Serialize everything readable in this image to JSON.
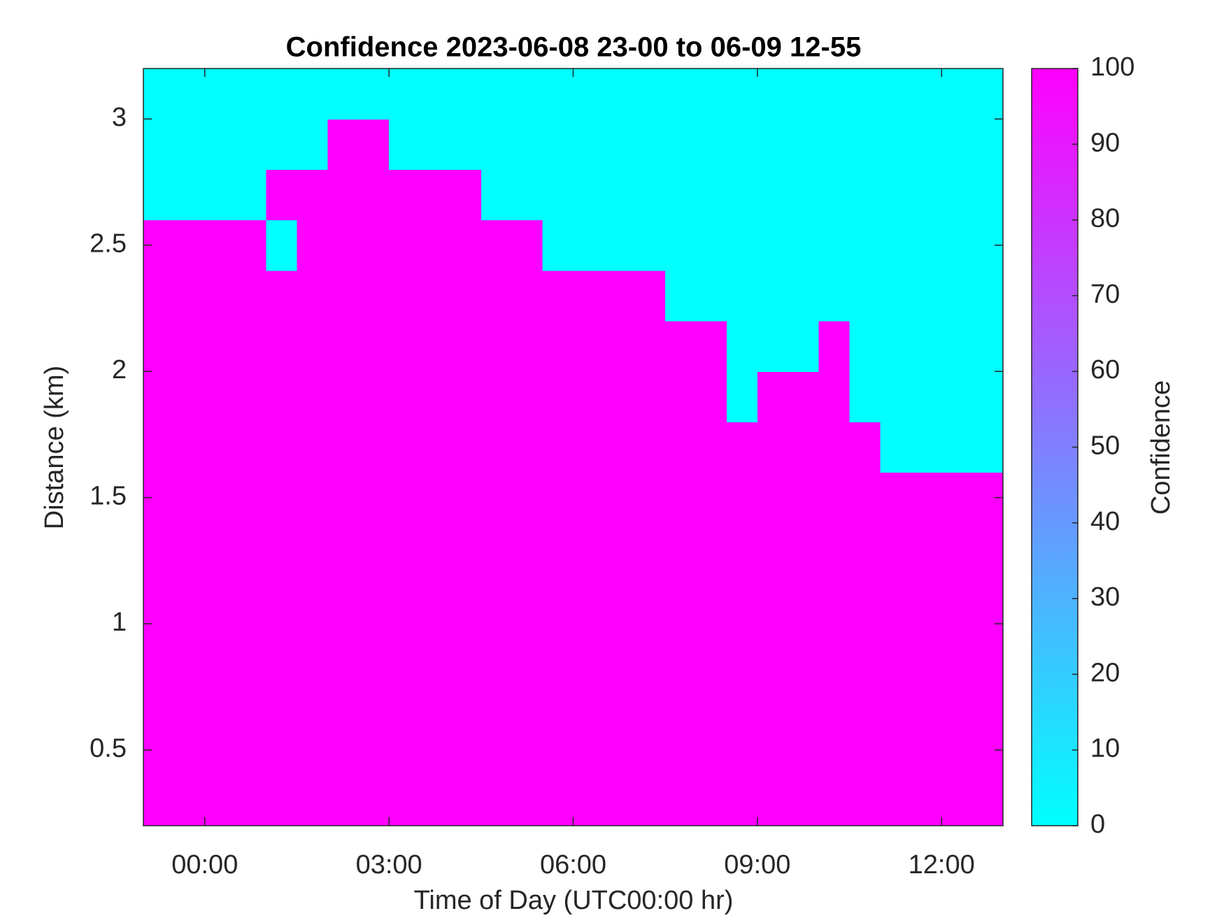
{
  "chart_data": {
    "type": "heatmap",
    "title": "Confidence 2023-06-08 23-00 to 06-09 12-55",
    "x_label": "Time of Day (UTC00:00 hr)",
    "y_label": "Distance (km)",
    "colorbar_label": "Confidence",
    "colormap": "cool",
    "xlim": [
      -1,
      13
    ],
    "ylim": [
      0.2,
      3.2
    ],
    "clim": [
      0,
      100
    ],
    "xticks": [
      {
        "value": 0,
        "label": "00:00"
      },
      {
        "value": 3,
        "label": "03:00"
      },
      {
        "value": 6,
        "label": "06:00"
      },
      {
        "value": 9,
        "label": "09:00"
      },
      {
        "value": 12,
        "label": "12:00"
      }
    ],
    "yticks": [
      0.5,
      1,
      1.5,
      2,
      2.5,
      3
    ],
    "cticks": [
      0,
      10,
      20,
      30,
      40,
      50,
      60,
      70,
      80,
      90,
      100
    ],
    "x_edges": [
      -1,
      -0.5,
      0,
      0.5,
      1,
      1.5,
      2,
      2.5,
      3,
      3.5,
      4,
      4.5,
      5,
      5.5,
      6,
      6.5,
      7,
      7.5,
      8,
      8.5,
      9,
      9.5,
      10,
      10.5,
      11,
      11.5,
      12,
      12.5,
      13
    ],
    "y_edges": [
      0.2,
      0.4,
      0.6,
      0.8,
      1.0,
      1.2,
      1.4,
      1.6,
      1.8,
      2.0,
      2.2,
      2.4,
      2.6,
      2.8,
      3.0,
      3.2
    ],
    "z": [
      [
        100,
        100,
        100,
        100,
        100,
        100,
        100,
        100,
        100,
        100,
        100,
        100,
        100,
        100,
        100,
        100,
        100,
        100,
        100,
        100,
        100,
        100,
        100,
        100,
        100,
        100,
        100,
        100
      ],
      [
        100,
        100,
        100,
        100,
        100,
        100,
        100,
        100,
        100,
        100,
        100,
        100,
        100,
        100,
        100,
        100,
        100,
        100,
        100,
        100,
        100,
        100,
        100,
        100,
        100,
        100,
        100,
        100
      ],
      [
        100,
        100,
        100,
        100,
        100,
        100,
        100,
        100,
        100,
        100,
        100,
        100,
        100,
        100,
        100,
        100,
        100,
        100,
        100,
        100,
        100,
        100,
        100,
        100,
        100,
        100,
        100,
        100
      ],
      [
        100,
        100,
        100,
        100,
        100,
        100,
        100,
        100,
        100,
        100,
        100,
        100,
        100,
        100,
        100,
        100,
        100,
        100,
        100,
        100,
        100,
        100,
        100,
        100,
        100,
        100,
        100,
        100
      ],
      [
        100,
        100,
        100,
        100,
        100,
        100,
        100,
        100,
        100,
        100,
        100,
        100,
        100,
        100,
        100,
        100,
        100,
        100,
        100,
        100,
        100,
        100,
        100,
        100,
        100,
        100,
        100,
        100
      ],
      [
        100,
        100,
        100,
        100,
        100,
        100,
        100,
        100,
        100,
        100,
        100,
        100,
        100,
        100,
        100,
        100,
        100,
        100,
        100,
        100,
        100,
        100,
        100,
        100,
        100,
        100,
        100,
        100
      ],
      [
        100,
        100,
        100,
        100,
        100,
        100,
        100,
        100,
        100,
        100,
        100,
        100,
        100,
        100,
        100,
        100,
        100,
        100,
        100,
        100,
        100,
        100,
        100,
        100,
        100,
        100,
        100,
        100
      ],
      [
        100,
        100,
        100,
        100,
        100,
        100,
        100,
        100,
        100,
        100,
        100,
        100,
        100,
        100,
        100,
        100,
        100,
        100,
        100,
        100,
        100,
        100,
        100,
        100,
        0,
        0,
        0,
        0
      ],
      [
        100,
        100,
        100,
        100,
        100,
        100,
        100,
        100,
        100,
        100,
        100,
        100,
        100,
        100,
        100,
        100,
        100,
        100,
        100,
        0,
        100,
        100,
        100,
        0,
        0,
        0,
        0,
        0
      ],
      [
        100,
        100,
        100,
        100,
        100,
        100,
        100,
        100,
        100,
        100,
        100,
        100,
        100,
        100,
        100,
        100,
        100,
        100,
        100,
        0,
        0,
        0,
        100,
        0,
        0,
        0,
        0,
        0
      ],
      [
        100,
        100,
        100,
        100,
        100,
        100,
        100,
        100,
        100,
        100,
        100,
        100,
        100,
        100,
        100,
        100,
        100,
        0,
        0,
        0,
        0,
        0,
        0,
        0,
        0,
        0,
        0,
        0
      ],
      [
        100,
        100,
        100,
        100,
        0,
        100,
        100,
        100,
        100,
        100,
        100,
        100,
        100,
        0,
        0,
        0,
        0,
        0,
        0,
        0,
        0,
        0,
        0,
        0,
        0,
        0,
        0,
        0
      ],
      [
        0,
        0,
        0,
        0,
        100,
        100,
        100,
        100,
        100,
        100,
        100,
        0,
        0,
        0,
        0,
        0,
        0,
        0,
        0,
        0,
        0,
        0,
        0,
        0,
        0,
        0,
        0,
        0
      ],
      [
        0,
        0,
        0,
        0,
        0,
        0,
        100,
        100,
        0,
        0,
        0,
        0,
        0,
        0,
        0,
        0,
        0,
        0,
        0,
        0,
        0,
        0,
        0,
        0,
        0,
        0,
        0,
        0
      ],
      [
        0,
        0,
        0,
        0,
        0,
        0,
        0,
        0,
        0,
        0,
        0,
        0,
        0,
        0,
        0,
        0,
        0,
        0,
        0,
        0,
        0,
        0,
        0,
        0,
        0,
        0,
        0,
        0
      ]
    ]
  }
}
